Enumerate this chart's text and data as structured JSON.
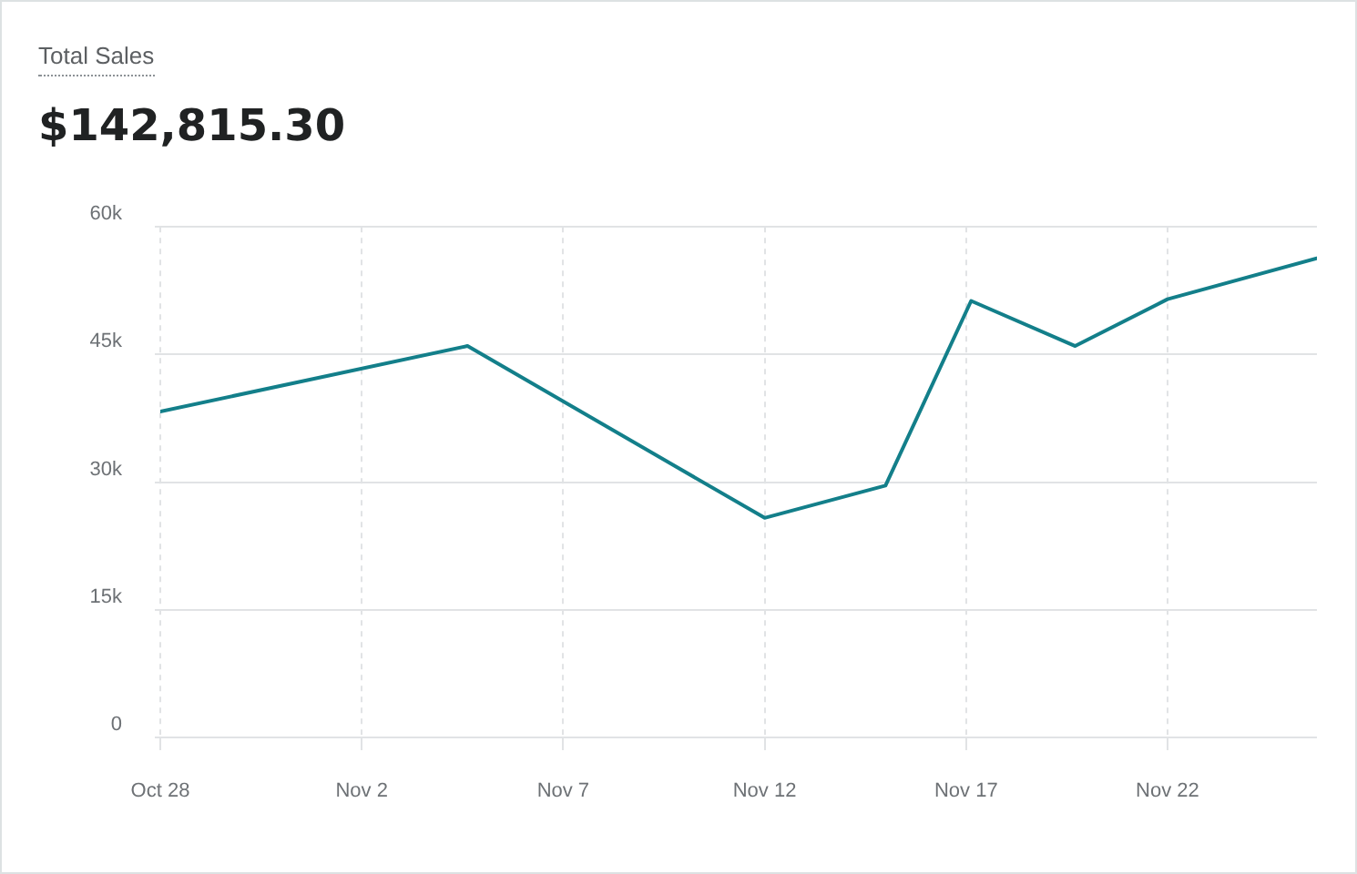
{
  "chart_data": {
    "type": "line",
    "title": "Total Sales",
    "subtitle": "$142,815.30",
    "x": [
      "--10-28",
      "--11-04T15:00",
      "--11-12",
      "--11-15",
      "--11-17T03:00",
      "--11-19T17:00",
      "--11-22",
      "--11-25T17:00"
    ],
    "series": [
      {
        "color": "#137f8a",
        "values": [
          38300,
          46000,
          25800,
          29600,
          51300,
          46000,
          51500,
          56300
        ]
      }
    ],
    "xlim": [
      "--10-28",
      "--11-25T17:00"
    ],
    "xticks": [
      {
        "value": "--10-28",
        "label": "Oct 28"
      },
      {
        "value": "--11-02",
        "label": "Nov 2"
      },
      {
        "value": "--11-07",
        "label": "Nov 7"
      },
      {
        "value": "--11-12",
        "label": "Nov 12"
      },
      {
        "value": "--11-17",
        "label": "Nov 17"
      },
      {
        "value": "--11-22",
        "label": "Nov 22"
      }
    ],
    "ylim": [
      0,
      60000
    ],
    "yticks": [
      {
        "value": 0,
        "label": "0"
      },
      {
        "value": 15000,
        "label": "15k"
      },
      {
        "value": 30000,
        "label": "30k"
      },
      {
        "value": 45000,
        "label": "45k"
      },
      {
        "value": 60000,
        "label": "60k"
      }
    ],
    "grid": true,
    "line_style": "solid"
  }
}
